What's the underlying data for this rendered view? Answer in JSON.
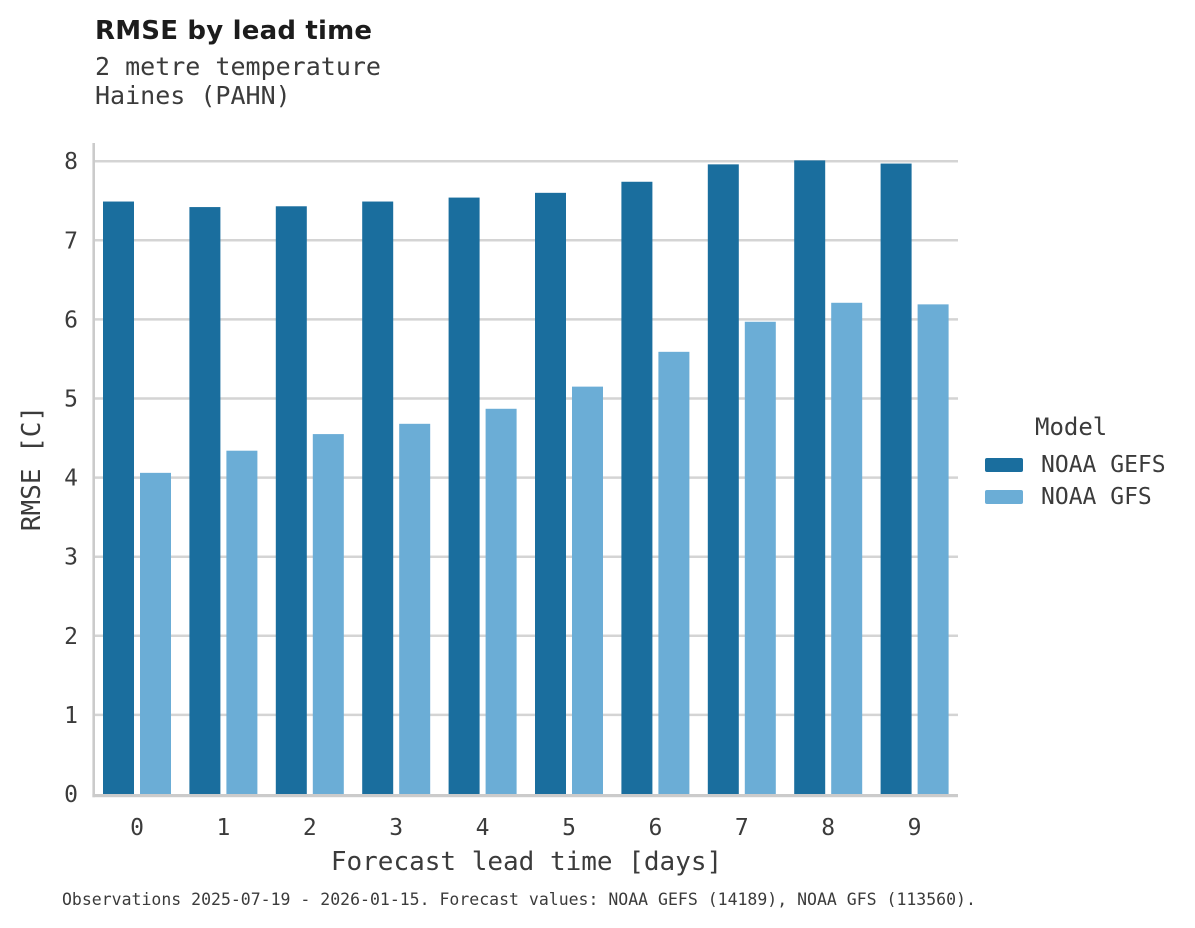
{
  "header": {
    "title": "RMSE by lead time",
    "subtitle_variable": "2 metre temperature",
    "subtitle_station": "Haines (PAHN)"
  },
  "chart_data": {
    "type": "bar",
    "title": "RMSE by lead time",
    "subtitle": [
      "2 metre temperature",
      "Haines (PAHN)"
    ],
    "categories": [
      "0",
      "1",
      "2",
      "3",
      "4",
      "5",
      "6",
      "7",
      "8",
      "9"
    ],
    "series": [
      {
        "name": "NOAA GEFS",
        "color": "#1a6e9e",
        "values": [
          7.49,
          7.42,
          7.43,
          7.49,
          7.54,
          7.6,
          7.74,
          7.96,
          8.01,
          7.97
        ]
      },
      {
        "name": "NOAA GFS",
        "color": "#6badd6",
        "values": [
          4.06,
          4.34,
          4.55,
          4.68,
          4.87,
          5.15,
          5.59,
          5.97,
          6.21,
          6.19
        ]
      }
    ],
    "xlabel": "Forecast lead time [days]",
    "ylabel": "RMSE [C]",
    "ylim": [
      0,
      8.23
    ],
    "yticks": [
      0,
      1,
      2,
      3,
      4,
      5,
      6,
      7,
      8
    ],
    "grid": "horizontal",
    "legend_position": "right"
  },
  "legend": {
    "title": "Model",
    "entries": [
      {
        "label": "NOAA GEFS",
        "color": "#1a6e9e"
      },
      {
        "label": "NOAA GFS",
        "color": "#6badd6"
      }
    ]
  },
  "footer": {
    "note": "Observations 2025-07-19 - 2026-01-15. Forecast values: NOAA GEFS (14189), NOAA GFS (113560)."
  },
  "colors": {
    "gefs": "#1a6e9e",
    "gfs": "#6badd6",
    "grid": "#d4d4d4",
    "spine": "#cbcbcb",
    "text": "#3b3b3b"
  }
}
